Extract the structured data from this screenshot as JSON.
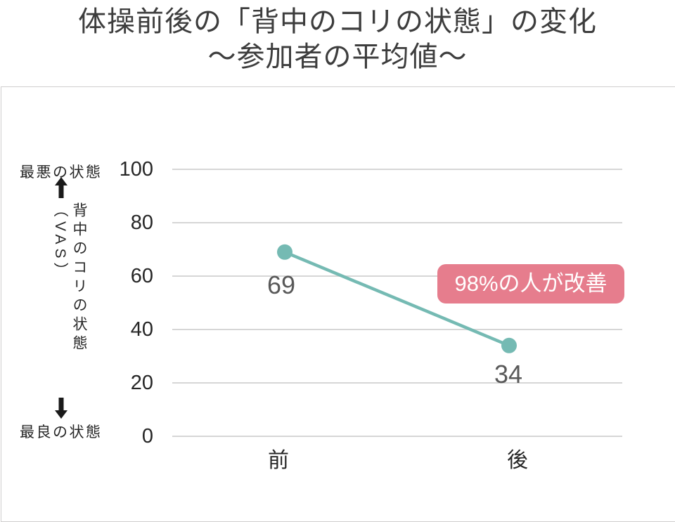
{
  "slide": {
    "title_line1": "体操前後の「背中のコリの状態」の変化",
    "title_line2": "～参加者の平均値～"
  },
  "y_axis": {
    "top_annotation": "最悪の状態",
    "bottom_annotation": "最良の状態",
    "axis_label": "背中のコリの状態（VAS）"
  },
  "badge": {
    "label": "98%の人が改善"
  },
  "colors": {
    "line": "#75bab3",
    "badge_bg": "#e67d8d",
    "badge_text": "#ffffff",
    "gridline": "#d6d6d6",
    "frame_border": "#d0cece",
    "data_label": "#595959",
    "axis_text": "#262626",
    "title_text": "#3d3d3d",
    "arrow": "#1a1a1a"
  },
  "chart_data": {
    "type": "line",
    "title": "体操前後の「背中のコリの状態」の変化 ～参加者の平均値～",
    "categories": [
      "前",
      "後"
    ],
    "values": [
      69,
      34
    ],
    "data_labels": [
      "69",
      "34"
    ],
    "xlabel": "",
    "ylabel": "背中のコリの状態（VAS）",
    "ylim": [
      0,
      100
    ],
    "yticks": [
      100,
      80,
      60,
      40,
      20,
      0
    ],
    "grid": true,
    "legend": false,
    "annotation": "98%の人が改善"
  }
}
